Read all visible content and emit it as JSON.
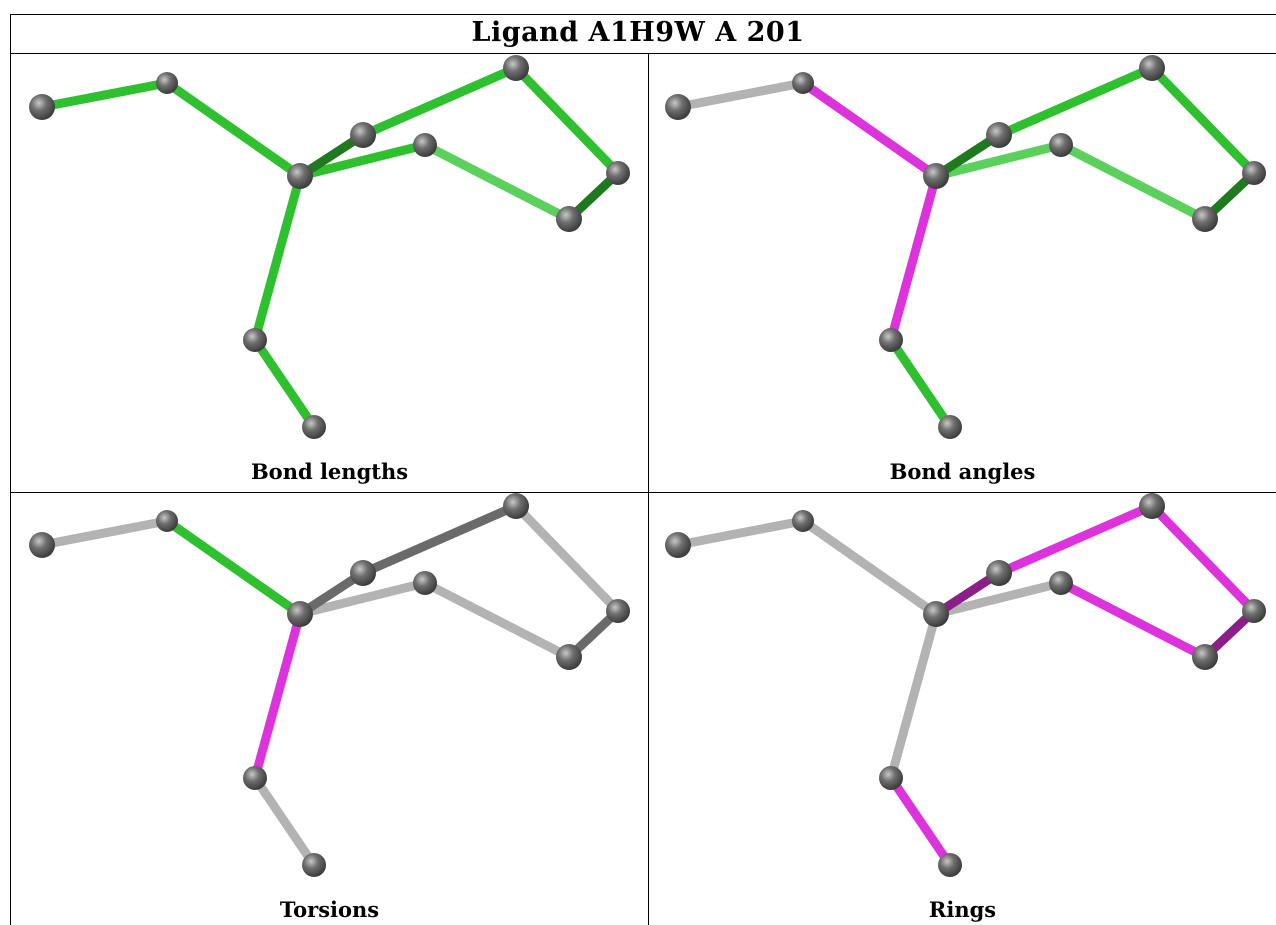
{
  "title": "Ligand A1H9W A 201",
  "colors": {
    "atom": "#6e6e6e",
    "good": "#2ec02e",
    "good_light": "#5cd05c",
    "good_dark": "#1f7a1f",
    "outlier": "#dd33dd",
    "outlier_dark": "#8a1f8a",
    "neutral": "#b3b3b3",
    "neutral_dark": "#6a6a6a"
  },
  "panels": [
    {
      "caption": "Bond lengths",
      "bonds": [
        "good",
        "good",
        "good",
        "good_dark",
        "good",
        "good",
        "good",
        "good_light",
        "good_dark",
        "good",
        "good"
      ]
    },
    {
      "caption": "Bond angles",
      "bonds": [
        "neutral",
        "outlier",
        "outlier",
        "good_dark",
        "good",
        "good",
        "good",
        "good_light",
        "good_dark",
        "good_light",
        "good"
      ]
    },
    {
      "caption": "Torsions",
      "bonds": [
        "neutral",
        "good",
        "outlier",
        "neutral_dark",
        "neutral",
        "neutral_dark",
        "neutral",
        "neutral",
        "neutral_dark",
        "neutral",
        "neutral_dark"
      ]
    },
    {
      "caption": "Rings",
      "bonds": [
        "neutral",
        "neutral",
        "neutral",
        "outlier_dark",
        "outlier",
        "outlier",
        "outlier",
        "outlier",
        "outlier_dark",
        "neutral",
        "neutral"
      ]
    }
  ]
}
